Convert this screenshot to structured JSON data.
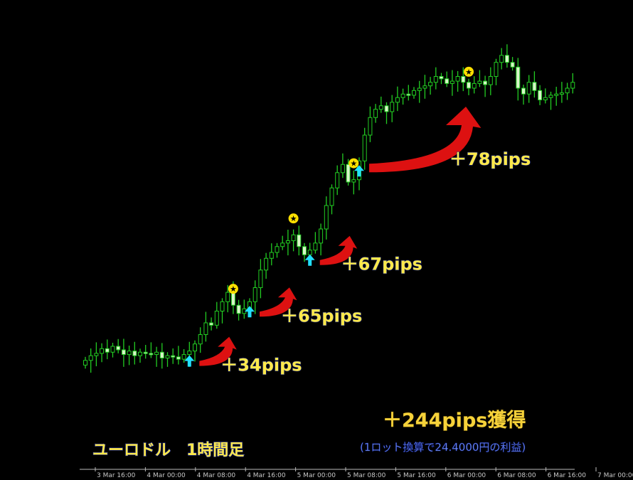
{
  "chart_data": {
    "type": "candlestick",
    "title": "ユーロドル　1時間足",
    "xlabel": "",
    "ylabel": "",
    "x_tick_labels": [
      "3 Mar 16:00",
      "4 Mar 00:00",
      "4 Mar 08:00",
      "4 Mar 16:00",
      "5 Mar 00:00",
      "5 Mar 08:00",
      "5 Mar 16:00",
      "6 Mar 00:00",
      "6 Mar 08:00",
      "6 Mar 16:00",
      "7 Mar 00:00"
    ],
    "grid": false,
    "colors": {
      "background": "#000000",
      "candle": "#22cc22",
      "bull_body": "#000000",
      "bear_body": "#d8f5c8",
      "buy_arrow": "#22e0ff",
      "exit_star": "#ffe000",
      "profit_arrow": "#dd1111",
      "label": "#ffe94a"
    },
    "closes": [
      8,
      12,
      14,
      18,
      15,
      20,
      17,
      13,
      16,
      12,
      15,
      14,
      13,
      15,
      10,
      12,
      11,
      9,
      13,
      16,
      22,
      30,
      40,
      38,
      50,
      58,
      66,
      55,
      48,
      52,
      58,
      70,
      85,
      95,
      100,
      105,
      108,
      110,
      115,
      105,
      98,
      102,
      108,
      120,
      140,
      155,
      168,
      175,
      160,
      162,
      178,
      200,
      215,
      222,
      225,
      220,
      228,
      232,
      235,
      234,
      238,
      240,
      242,
      245,
      250,
      248,
      244,
      246,
      250,
      245,
      240,
      244,
      246,
      243,
      250,
      262,
      268,
      262,
      258,
      240,
      235,
      245,
      238,
      230,
      232,
      234,
      235,
      236,
      240,
      245
    ],
    "trades": [
      {
        "entry_index": 19,
        "exit_index": 27,
        "label": "＋34pips"
      },
      {
        "entry_index": 30,
        "exit_index": 38,
        "label": "＋65pips"
      },
      {
        "entry_index": 41,
        "exit_index": 49,
        "label": "＋67pips"
      },
      {
        "entry_index": 50,
        "exit_index": 70,
        "label": "＋78pips"
      }
    ],
    "annotations": {
      "total": "＋244pips獲得",
      "note": "(1ロット換算で24.4000円の利益)"
    }
  }
}
